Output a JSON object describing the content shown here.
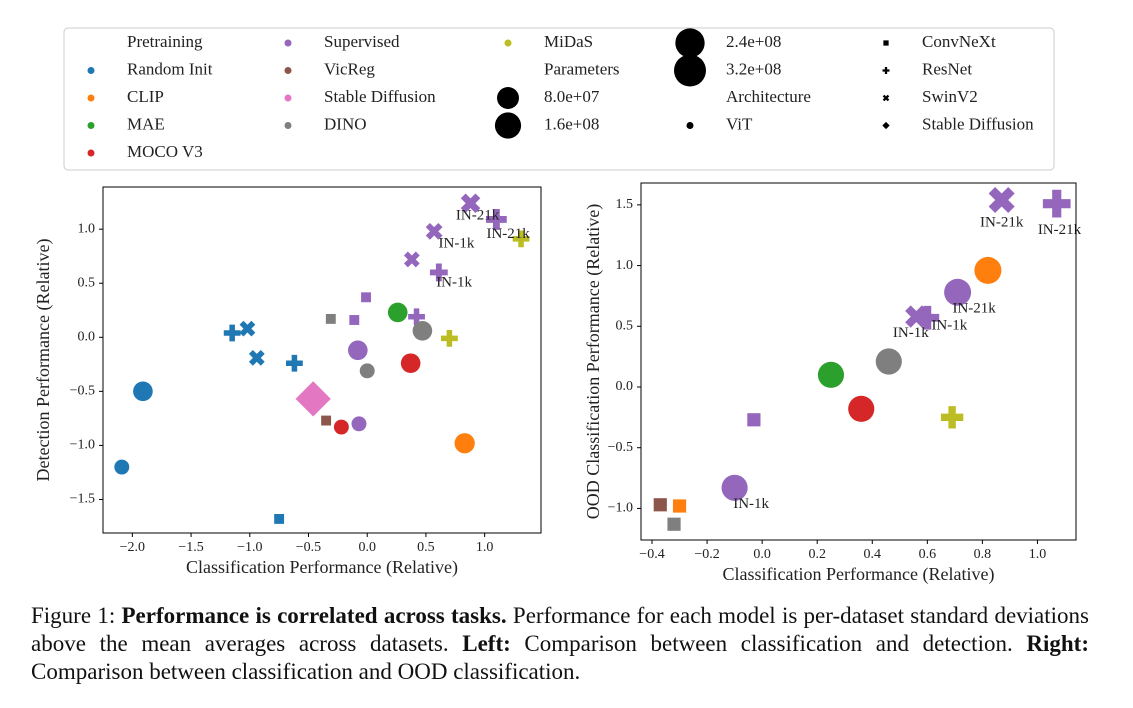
{
  "legend": {
    "title": "Pretraining",
    "size_title": "Parameters",
    "sizes": [
      {
        "value": 80000000,
        "label": "8.0e+07"
      },
      {
        "value": 160000000,
        "label": "1.6e+08"
      },
      {
        "value": 240000000,
        "label": "2.4e+08"
      },
      {
        "value": 320000000,
        "label": "3.2e+08"
      }
    ],
    "marker_title": "Architecture",
    "markers": [
      {
        "label": "ViT",
        "marker": "o"
      },
      {
        "label": "ConvNeXt",
        "marker": "s"
      },
      {
        "label": "ResNet",
        "marker": "P"
      },
      {
        "label": "SwinV2",
        "marker": "X"
      },
      {
        "label": "Stable Diffusion",
        "marker": "D"
      }
    ]
  },
  "chart_data": [
    {
      "type": "scatter",
      "xlabel": "Classification Performance (Relative)",
      "ylabel": "Detection Performance (Relative)",
      "xlim": [
        -2.25,
        1.48
      ],
      "ylim": [
        -1.81,
        1.39
      ],
      "xticks": [
        {
          "value": -2.0,
          "label": "−2.0"
        },
        {
          "value": -1.5,
          "label": "−1.5"
        },
        {
          "value": -1.0,
          "label": "−1.0"
        },
        {
          "value": -0.5,
          "label": "−0.5"
        },
        {
          "value": 0.0,
          "label": "0.0"
        },
        {
          "value": 0.5,
          "label": "0.5"
        },
        {
          "value": 1.0,
          "label": "1.0"
        }
      ],
      "yticks": [
        {
          "value": -1.5,
          "label": "−1.5"
        },
        {
          "value": -1.0,
          "label": "−1.0"
        },
        {
          "value": -0.5,
          "label": "−0.5"
        },
        {
          "value": 0.0,
          "label": "0.0"
        },
        {
          "value": 0.5,
          "label": "0.5"
        },
        {
          "value": 1.0,
          "label": "1.0"
        }
      ],
      "series": [
        {
          "name": "Random Init",
          "color": "#1f77b4",
          "x": [
            -1.91,
            -2.09,
            -1.15,
            -1.02,
            -0.94,
            -0.62,
            -0.75
          ],
          "values": [
            -0.5,
            -1.2,
            0.04,
            0.08,
            -0.19,
            -0.24,
            -1.68
          ],
          "sizes": [
            160000000,
            50000000,
            86000000,
            86000000,
            86000000,
            86000000,
            25000000
          ],
          "markers": [
            "o",
            "o",
            "P",
            "X",
            "X",
            "P",
            "s"
          ]
        },
        {
          "name": "CLIP",
          "color": "#ff7f0e",
          "x": [
            0.83
          ],
          "values": [
            -0.98
          ],
          "sizes": [
            180000000
          ],
          "markers": [
            "o"
          ]
        },
        {
          "name": "MAE",
          "color": "#2ca02c",
          "x": [
            0.26
          ],
          "values": [
            0.23
          ],
          "sizes": [
            160000000
          ],
          "markers": [
            "o"
          ]
        },
        {
          "name": "MOCO V3",
          "color": "#d62728",
          "x": [
            0.37,
            -0.22
          ],
          "values": [
            -0.24,
            -0.83
          ],
          "sizes": [
            160000000,
            50000000
          ],
          "markers": [
            "o",
            "o"
          ]
        },
        {
          "name": "Supervised",
          "color": "#9467bd",
          "x": [
            -0.08,
            -0.07,
            -0.01,
            -0.11,
            0.38,
            0.42,
            0.57,
            0.61,
            0.88,
            1.1
          ],
          "values": [
            -0.12,
            -0.8,
            0.37,
            0.16,
            0.72,
            0.19,
            0.98,
            0.6,
            1.24,
            1.09
          ],
          "sizes": [
            160000000,
            50000000,
            25000000,
            25000000,
            86000000,
            86000000,
            110000000,
            110000000,
            197000000,
            197000000
          ],
          "markers": [
            "o",
            "o",
            "s",
            "s",
            "X",
            "P",
            "X",
            "P",
            "X",
            "P"
          ]
        },
        {
          "name": "VicReg",
          "color": "#8c564b",
          "x": [
            -0.35
          ],
          "values": [
            -0.77
          ],
          "sizes": [
            25000000
          ],
          "markers": [
            "s"
          ]
        },
        {
          "name": "Stable Diffusion",
          "color": "#e377c2",
          "x": [
            -0.46
          ],
          "values": [
            -0.57
          ],
          "sizes": [
            860000000
          ],
          "markers": [
            "D"
          ]
        },
        {
          "name": "DINO",
          "color": "#7f7f7f",
          "x": [
            -0.31,
            0.47,
            0.0
          ],
          "values": [
            0.17,
            0.06,
            -0.31
          ],
          "sizes": [
            25000000,
            160000000,
            50000000
          ],
          "markers": [
            "s",
            "o",
            "o"
          ]
        },
        {
          "name": "MiDaS",
          "color": "#bcbd22",
          "x": [
            0.7,
            1.31
          ],
          "values": [
            -0.01,
            0.91
          ],
          "sizes": [
            86000000,
            86000000
          ],
          "markers": [
            "P",
            "P"
          ]
        }
      ],
      "annotations": [
        {
          "text": "IN-21k",
          "x": 0.94,
          "y": 1.12
        },
        {
          "text": "IN-21k",
          "x": 1.2,
          "y": 0.95
        },
        {
          "text": "IN-1k",
          "x": 0.76,
          "y": 0.86
        },
        {
          "text": "IN-1k",
          "x": 0.74,
          "y": 0.5
        }
      ]
    },
    {
      "type": "scatter",
      "xlabel": "Classification Performance (Relative)",
      "ylabel": "OOD Classification Performance (Relative)",
      "xlim": [
        -0.44,
        1.14
      ],
      "ylim": [
        -1.26,
        1.68
      ],
      "xticks": [
        {
          "value": -0.4,
          "label": "−0.4"
        },
        {
          "value": -0.2,
          "label": "−0.2"
        },
        {
          "value": 0.0,
          "label": "0.0"
        },
        {
          "value": 0.2,
          "label": "0.2"
        },
        {
          "value": 0.4,
          "label": "0.4"
        },
        {
          "value": 0.6,
          "label": "0.6"
        },
        {
          "value": 0.8,
          "label": "0.8"
        },
        {
          "value": 1.0,
          "label": "1.0"
        }
      ],
      "yticks": [
        {
          "value": -1.0,
          "label": "−1.0"
        },
        {
          "value": -0.5,
          "label": "−0.5"
        },
        {
          "value": 0.0,
          "label": "0.0"
        },
        {
          "value": 0.5,
          "label": "0.5"
        },
        {
          "value": 1.0,
          "label": "1.0"
        },
        {
          "value": 1.5,
          "label": "1.5"
        }
      ],
      "series": [
        {
          "color": "#ff7f0e",
          "x": [
            0.82,
            -0.3
          ],
          "values": [
            0.96,
            -0.98
          ],
          "sizes": [
            180000000,
            25000000
          ],
          "markers": [
            "o",
            "s"
          ]
        },
        {
          "color": "#2ca02c",
          "x": [
            0.25
          ],
          "values": [
            0.1
          ],
          "sizes": [
            160000000
          ],
          "markers": [
            "o"
          ]
        },
        {
          "color": "#d62728",
          "x": [
            0.36
          ],
          "values": [
            -0.18
          ],
          "sizes": [
            160000000
          ],
          "markers": [
            "o"
          ]
        },
        {
          "color": "#9467bd",
          "x": [
            0.87,
            1.07,
            0.71,
            0.56,
            0.6,
            -0.03,
            -0.1,
            -0.11
          ],
          "values": [
            1.54,
            1.51,
            0.78,
            0.58,
            0.57,
            -0.27,
            -0.83,
            -0.83
          ],
          "sizes": [
            197000000,
            197000000,
            180000000,
            110000000,
            110000000,
            25000000,
            160000000,
            25000000
          ],
          "markers": [
            "X",
            "P",
            "o",
            "X",
            "P",
            "s",
            "o",
            "s"
          ]
        },
        {
          "color": "#8c564b",
          "x": [
            -0.37
          ],
          "values": [
            -0.97
          ],
          "sizes": [
            25000000
          ],
          "markers": [
            "s"
          ]
        },
        {
          "color": "#7f7f7f",
          "x": [
            0.46,
            -0.32
          ],
          "values": [
            0.21,
            -1.13
          ],
          "sizes": [
            160000000,
            25000000
          ],
          "markers": [
            "o",
            "s"
          ]
        },
        {
          "color": "#bcbd22",
          "x": [
            0.69
          ],
          "values": [
            -0.25
          ],
          "sizes": [
            86000000
          ],
          "markers": [
            "P"
          ]
        }
      ],
      "annotations": [
        {
          "text": "IN-21k",
          "x": 0.87,
          "y": 1.35
        },
        {
          "text": "IN-21k",
          "x": 1.08,
          "y": 1.29
        },
        {
          "text": "IN-21k",
          "x": 0.77,
          "y": 0.64
        },
        {
          "text": "IN-1k",
          "x": 0.68,
          "y": 0.5
        },
        {
          "text": "IN-1k",
          "x": 0.54,
          "y": 0.44
        },
        {
          "text": "IN-1k",
          "x": -0.04,
          "y": -0.97
        }
      ]
    }
  ],
  "caption": {
    "label": "Figure 1:",
    "heading": "Performance is correlated across tasks.",
    "text": "Performance for each model is per-dataset standard deviations above the mean averages across datasets.",
    "left_label": "Left:",
    "left_text": "Comparison between classification and detection.",
    "right_label": "Right:",
    "right_text": "Comparison between classification and OOD classification."
  }
}
